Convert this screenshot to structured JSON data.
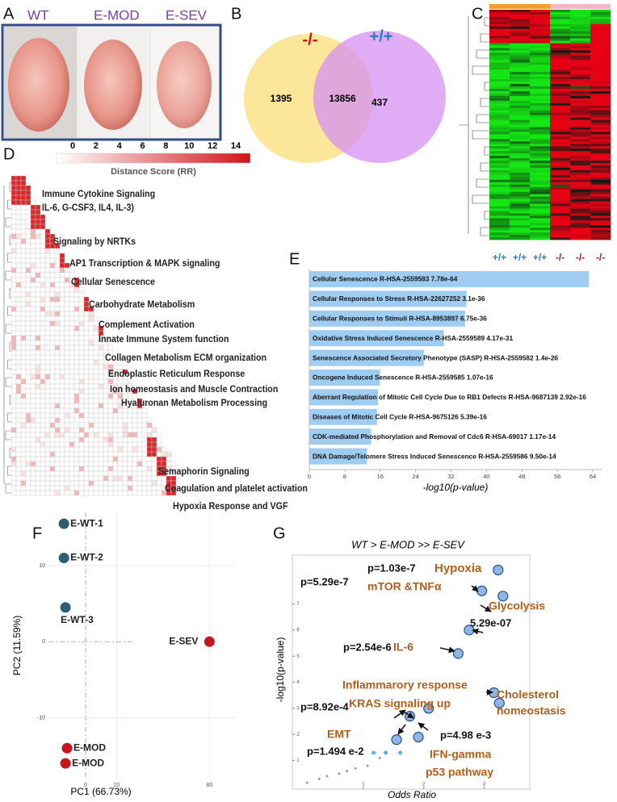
{
  "panel_labels": [
    "A",
    "B",
    "C",
    "D",
    "E",
    "F",
    "G"
  ],
  "photos": {
    "labels": [
      "WT",
      "E-MOD",
      "E-SEV"
    ]
  },
  "venn": {
    "set_labels": [
      "-/-",
      "+/+"
    ],
    "counts": [
      1395,
      13856,
      437
    ]
  },
  "heatmap": {
    "column_labels": [
      "+/+",
      "+/+",
      "+/+",
      "-/-",
      "-/-",
      "-/-"
    ]
  },
  "distance_map": {
    "legend_title": "Distance Score (RR)",
    "legend_ticks": [
      0,
      2,
      4,
      6,
      8,
      10,
      12,
      14
    ],
    "clusters": [
      "Immune Cytokine Signaling",
      "IL-6, G-CSF3, IL4, IL-3)",
      "Signaling by NRTKs",
      "AP1 Transcription & MAPK signaling",
      "Cellular Senescence",
      "Carbohydrate Metabolism",
      "Complement Activation",
      "Innate Immune System function",
      "Collagen Metabolism ECM organization",
      "Endoplastic Reticulum Response",
      "Ion homeostasis and Muscle Contraction",
      "Hyaluronan Metabolism Processing",
      "Semaphorin Signaling",
      "Coagulation and platelet activation",
      "Hypoxia Response and VGF"
    ]
  },
  "chart_data": [
    {
      "type": "bar",
      "orientation": "horizontal",
      "categories": [
        "Cellular Senescence R-HSA-2559583 7.78e-64",
        "Cellular Responses to Stress R-HSA-22627252 3.1e-36",
        "Cellular Responses to Stimuli R-HSA-8953897 6.75e-36",
        "Oxidative Stress Induced Senescence R-HSA-2559589 4.17e-31",
        "Senescence Associated Secretory Phenotype (SASP) R-HSA-2559582 1.4e-26",
        "Oncogene Induced Senescence R-HSA-2559585 1.07e-16",
        "Aberrant Regulation of Mitotic Cell Cycle Due to RB1 Defects R-HSA-9687139 2.92e-16",
        "Diseases of Mitotic Cell Cycle R-HSA-9675126 5.39e-16",
        "CDK-mediated Phosphorylation and Removal of Cdc6 R-HSA-69017 1.17e-14",
        "DNA Damage/Telomere Stress Induced Senescence R-HSA-2559586 9.50e-14"
      ],
      "values": [
        63.1,
        35.5,
        35.17,
        30.38,
        25.85,
        15.97,
        15.53,
        15.27,
        13.93,
        13.02
      ],
      "color": "#9fcdf2",
      "xlim": [
        0,
        66
      ],
      "xticks": [
        0,
        8,
        16,
        24,
        32,
        40,
        48,
        56,
        64
      ],
      "xlabel": "-log10(p-value)"
    },
    {
      "type": "scatter",
      "point_labels": [
        "E-WT-1",
        "E-WT-2",
        "E-WT-3",
        "E-SEV",
        "E-MOD",
        "E-MOD"
      ],
      "x": [
        -14,
        -14,
        -13,
        80,
        -12,
        -13
      ],
      "values": [
        15.5,
        11,
        4.5,
        0,
        -14,
        -16
      ],
      "colors": [
        "#2d5f6f",
        "#2d5f6f",
        "#2d5f6f",
        "#c8141c",
        "#c8141c",
        "#c8141c"
      ],
      "xlim": [
        -24,
        96
      ],
      "ylim": [
        -18,
        17
      ],
      "xticks": [
        0,
        20,
        80
      ],
      "yticks": [
        -10,
        0,
        10
      ],
      "grid": true,
      "xlabel": "PC1 (66.73%)",
      "ylabel": "PC2 (11.59%)"
    },
    {
      "type": "scatter",
      "title": "WT > E-MOD >> E-SEV",
      "x": [
        3.23,
        2.96,
        3.31,
        2.75,
        2.57,
        3.16,
        3.25,
        2.08,
        1.77,
        1.91,
        1.55,
        1.17,
        1.37,
        1.61,
        1.27,
        1.07,
        0.73,
        0.6,
        0.4,
        0.27,
        0.07,
        0.87
      ],
      "values": [
        8.3,
        7.5,
        7.3,
        6.0,
        5.1,
        3.6,
        3.2,
        3.0,
        2.7,
        1.9,
        1.8,
        1.3,
        1.3,
        1.3,
        1.1,
        0.8,
        0.6,
        0.5,
        0.4,
        0.3,
        0.15,
        0.7
      ],
      "sizes": [
        6,
        6,
        6,
        6,
        6,
        6,
        6,
        6,
        6,
        6,
        6,
        2.5,
        2.5,
        2.5,
        1.5,
        1.5,
        1.5,
        1.5,
        1.5,
        1.5,
        1.5,
        1.5
      ],
      "colors": [
        "#8fb6e4",
        "#8fb6e4",
        "#8fb6e4",
        "#8fb6e4",
        "#8fb6e4",
        "#8fb6e4",
        "#8fb6e4",
        "#8fb6e4",
        "#8fb6e4",
        "#8fb6e4",
        "#8fb6e4",
        "#5fb0ea",
        "#5fb0ea",
        "#5fb0ea",
        "#999999",
        "#999999",
        "#999999",
        "#999999",
        "#999999",
        "#999999",
        "#999999",
        "#999999"
      ],
      "xlim": [
        0,
        3.7
      ],
      "ylim": [
        0,
        8.5
      ],
      "xticks": [
        1,
        2,
        3
      ],
      "yticks": [
        1,
        2,
        3,
        4,
        5,
        6,
        7
      ],
      "xlabel": "Odds Ratio",
      "ylabel": "-log10(p-value)",
      "annotations": [
        {
          "text": "p=1.03e-7",
          "color": "#111111"
        },
        {
          "text": "Hypoxia",
          "color": "#b0601c"
        },
        {
          "text": "p=5.29e-7",
          "color": "#111111"
        },
        {
          "text": "mTOR &TNFα",
          "color": "#b0601c"
        },
        {
          "text": "Glycolysis",
          "color": "#b0601c"
        },
        {
          "text": "5.29e-07",
          "color": "#111111"
        },
        {
          "text": "p=2.54e-6",
          "color": "#111111"
        },
        {
          "text": "IL-6",
          "color": "#b0601c"
        },
        {
          "text": "Inflammarory response",
          "color": "#b0601c"
        },
        {
          "text": "KRAS signaling up",
          "color": "#b0601c"
        },
        {
          "text": "Cholesterol",
          "color": "#b0601c"
        },
        {
          "text": "homeostasis",
          "color": "#b0601c"
        },
        {
          "text": "p=8.92e-4",
          "color": "#111111"
        },
        {
          "text": "EMT",
          "color": "#b0601c"
        },
        {
          "text": "p=4.98 e-3",
          "color": "#111111"
        },
        {
          "text": "p=1.494 e-2",
          "color": "#111111"
        },
        {
          "text": "IFN-gamma",
          "color": "#b0601c"
        },
        {
          "text": "p53 pathway",
          "color": "#b0601c"
        }
      ]
    }
  ]
}
